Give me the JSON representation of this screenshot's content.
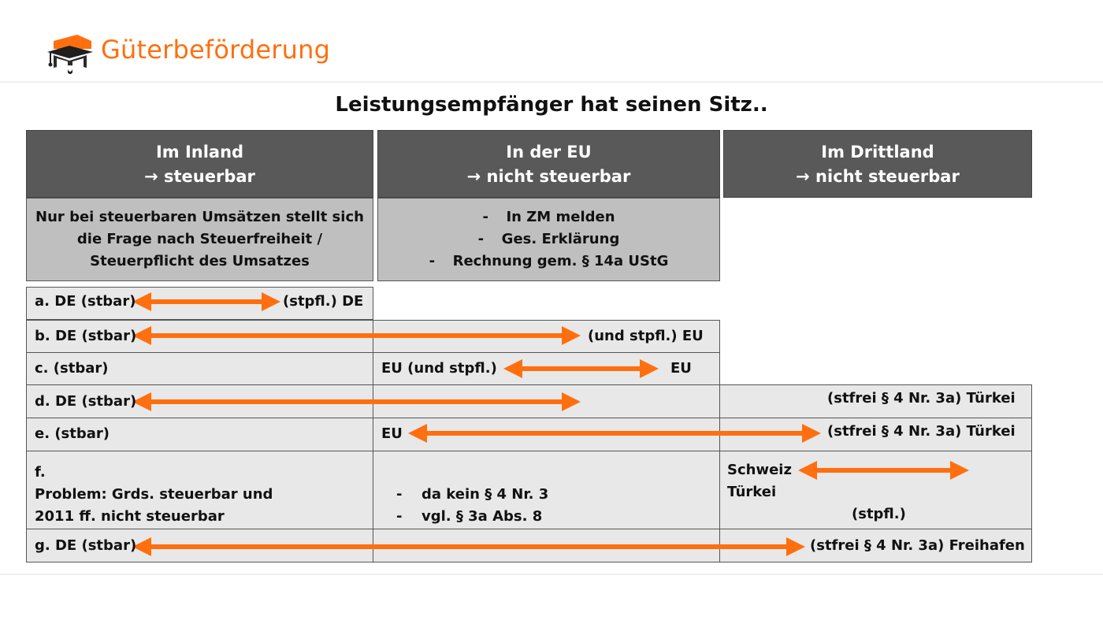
{
  "header": {
    "title": "Güterbeförderung",
    "logo_icon": "graduation-cap-book-icon"
  },
  "subtitle": "Leistungsempfänger hat seinen Sitz..",
  "columns": [
    {
      "title": "Im Inland",
      "subtitle": "→ steuerbar"
    },
    {
      "title": "In der EU",
      "subtitle": "→ nicht steuerbar"
    },
    {
      "title": "Im Drittland",
      "subtitle": "→ nicht steuerbar"
    }
  ],
  "info": {
    "inland": [
      "Nur bei steuerbaren Umsätzen stellt sich",
      "die Frage nach Steuerfreiheit /",
      "Steuerpflicht des Umsatzes"
    ],
    "eu": [
      "In ZM melden",
      "Ges. Erklärung",
      "Rechnung gem. § 14a UStG"
    ]
  },
  "rows": {
    "a": {
      "left": "a. DE (stbar)",
      "right": "(stpfl.) DE"
    },
    "b": {
      "left": "b. DE (stbar)",
      "right": "(und stpfl.) EU"
    },
    "c": {
      "left": "c. (stbar)",
      "mid_left": "EU (und stpfl.)",
      "mid_right": "EU"
    },
    "d": {
      "left": "d. DE (stbar)",
      "right": "(stfrei § 4 Nr. 3a) Türkei"
    },
    "e": {
      "left": "e. (stbar)",
      "mid_left": "EU",
      "right": "(stfrei § 4 Nr. 3a) Türkei"
    },
    "f": {
      "left": [
        "f.",
        "Problem: Grds. steuerbar und",
        "2011 ff. nicht steuerbar"
      ],
      "mid": [
        "da kein § 4 Nr. 3",
        "vgl. § 3a Abs. 8"
      ],
      "right_1": "Schweiz",
      "right_2": "Türkei",
      "right_3": "(stpfl.)"
    },
    "g": {
      "left": "g. DE (stbar)",
      "right": "(stfrei § 4 Nr. 3a) Freihafen"
    }
  },
  "colors": {
    "accent": "#ff6f0f",
    "header_bg": "#595959",
    "info_bg": "#bfbfbf",
    "cell_bg": "#e8e8e8"
  }
}
